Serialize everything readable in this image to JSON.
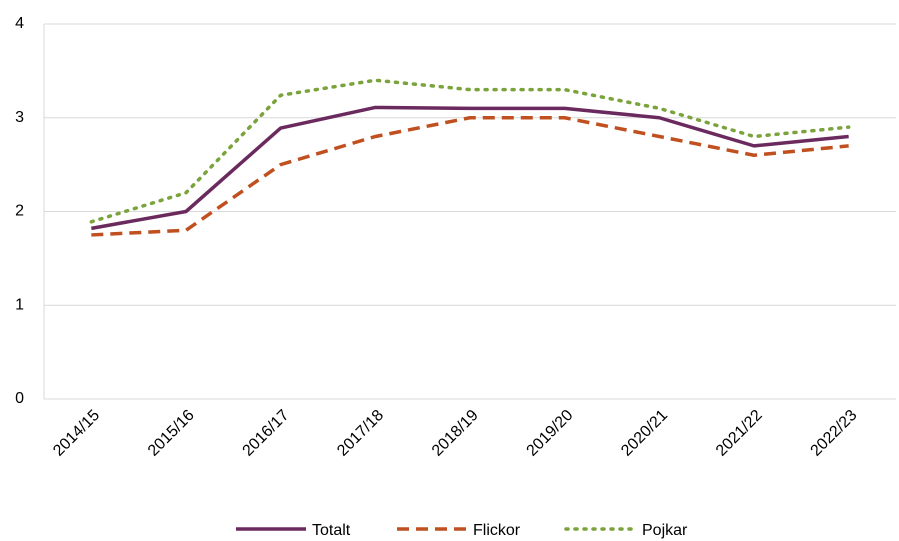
{
  "chart_data": {
    "type": "line",
    "categories": [
      "2014/15",
      "2015/16",
      "2016/17",
      "2017/18",
      "2018/19",
      "2019/20",
      "2020/21",
      "2021/22",
      "2022/23"
    ],
    "series": [
      {
        "name": "Totalt",
        "color": "#6b2a5e",
        "dash": "solid",
        "values": [
          1.82,
          2.0,
          2.89,
          3.11,
          3.1,
          3.1,
          3.0,
          2.7,
          2.8
        ]
      },
      {
        "name": "Flickor",
        "color": "#c0501f",
        "dash": "dashed",
        "values": [
          1.75,
          1.8,
          2.5,
          2.8,
          3.0,
          3.0,
          2.8,
          2.6,
          2.7
        ]
      },
      {
        "name": "Pojkar",
        "color": "#7aa33b",
        "dash": "dotted",
        "values": [
          1.89,
          2.2,
          3.24,
          3.4,
          3.3,
          3.3,
          3.1,
          2.8,
          2.9
        ]
      }
    ],
    "ylim": [
      0,
      4
    ],
    "yticks": [
      0,
      1,
      2,
      3,
      4
    ],
    "grid": true,
    "legend": "bottom"
  }
}
